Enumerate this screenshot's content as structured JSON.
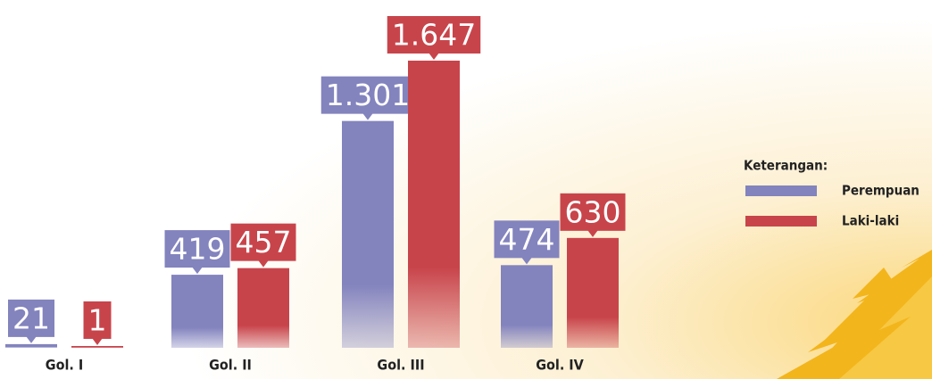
{
  "chart_data": {
    "type": "bar",
    "categories": [
      "Gol. I",
      "Gol. II",
      "Gol. III",
      "Gol. IV"
    ],
    "legend_title": "Keterangan:",
    "series": [
      {
        "name": "Perempuan",
        "color": "#8383be",
        "values": [
          21,
          419,
          1301,
          474
        ],
        "value_labels": [
          "21",
          "419",
          "1.301",
          "474"
        ]
      },
      {
        "name": "Laki-laki",
        "color": "#c8444b",
        "values": [
          1,
          457,
          1647,
          630
        ],
        "value_labels": [
          "1",
          "457",
          "1.647",
          "630"
        ]
      }
    ]
  }
}
